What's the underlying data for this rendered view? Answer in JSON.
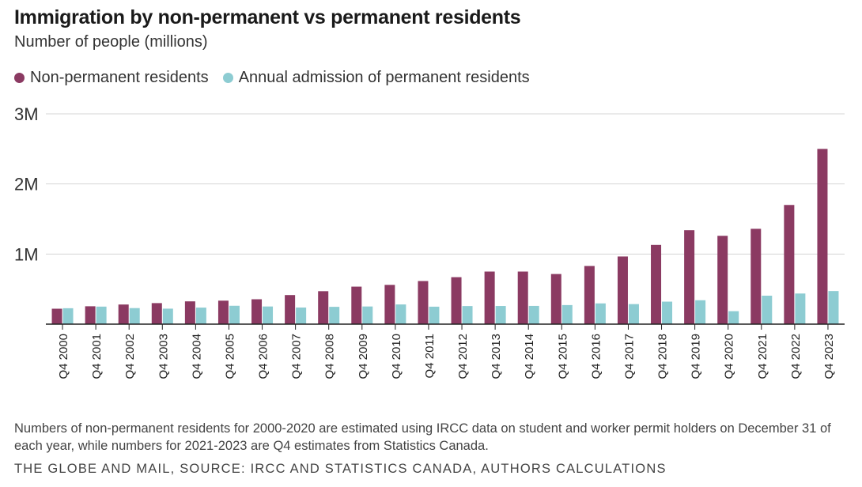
{
  "chart_data": {
    "type": "bar",
    "title": "Immigration by non-permanent vs permanent residents",
    "subtitle": "Number of people (millions)",
    "xlabel": "",
    "ylabel": "",
    "ylim": [
      0,
      3000000
    ],
    "yticks": [
      {
        "value": 1000000,
        "label": "1M"
      },
      {
        "value": 2000000,
        "label": "2M"
      },
      {
        "value": 3000000,
        "label": "3M"
      }
    ],
    "grid": true,
    "legend_position": "top-left",
    "categories": [
      "Q4 2000",
      "Q4 2001",
      "Q4 2002",
      "Q4 2003",
      "Q4 2004",
      "Q4 2005",
      "Q4 2006",
      "Q4 2007",
      "Q4 2008",
      "Q4 2009",
      "Q4 2010",
      "Q4 2011",
      "Q4 2012",
      "Q4 2013",
      "Q4 2014",
      "Q4 2015",
      "Q4 2016",
      "Q4 2017",
      "Q4 2018",
      "Q4 2019",
      "Q4 2020",
      "Q4 2021",
      "Q4 2022",
      "Q4 2023"
    ],
    "series": [
      {
        "name": "Non-permanent residents",
        "color": "#8b3a62",
        "values": [
          220000,
          255000,
          280000,
          300000,
          325000,
          335000,
          355000,
          415000,
          470000,
          535000,
          560000,
          615000,
          670000,
          750000,
          750000,
          715000,
          830000,
          965000,
          1130000,
          1340000,
          1260000,
          1360000,
          1700000,
          2500000
        ]
      },
      {
        "name": "Annual admission of permanent residents",
        "color": "#8dccd2",
        "values": [
          227000,
          250000,
          229000,
          221000,
          236000,
          262000,
          252000,
          237000,
          247000,
          252000,
          281000,
          249000,
          258000,
          259000,
          260000,
          272000,
          296000,
          286000,
          321000,
          341000,
          185000,
          406000,
          437000,
          472000
        ]
      }
    ],
    "note": "Numbers of non-permanent residents for 2000-2020 are estimated using IRCC data on student and worker permit holders on December 31 of each year, while numbers for 2021-2023 are Q4 estimates from Statistics Canada.",
    "source": "THE GLOBE AND MAIL, SOURCE: IRCC AND STATISTICS CANADA, AUTHORS CALCULATIONS"
  }
}
